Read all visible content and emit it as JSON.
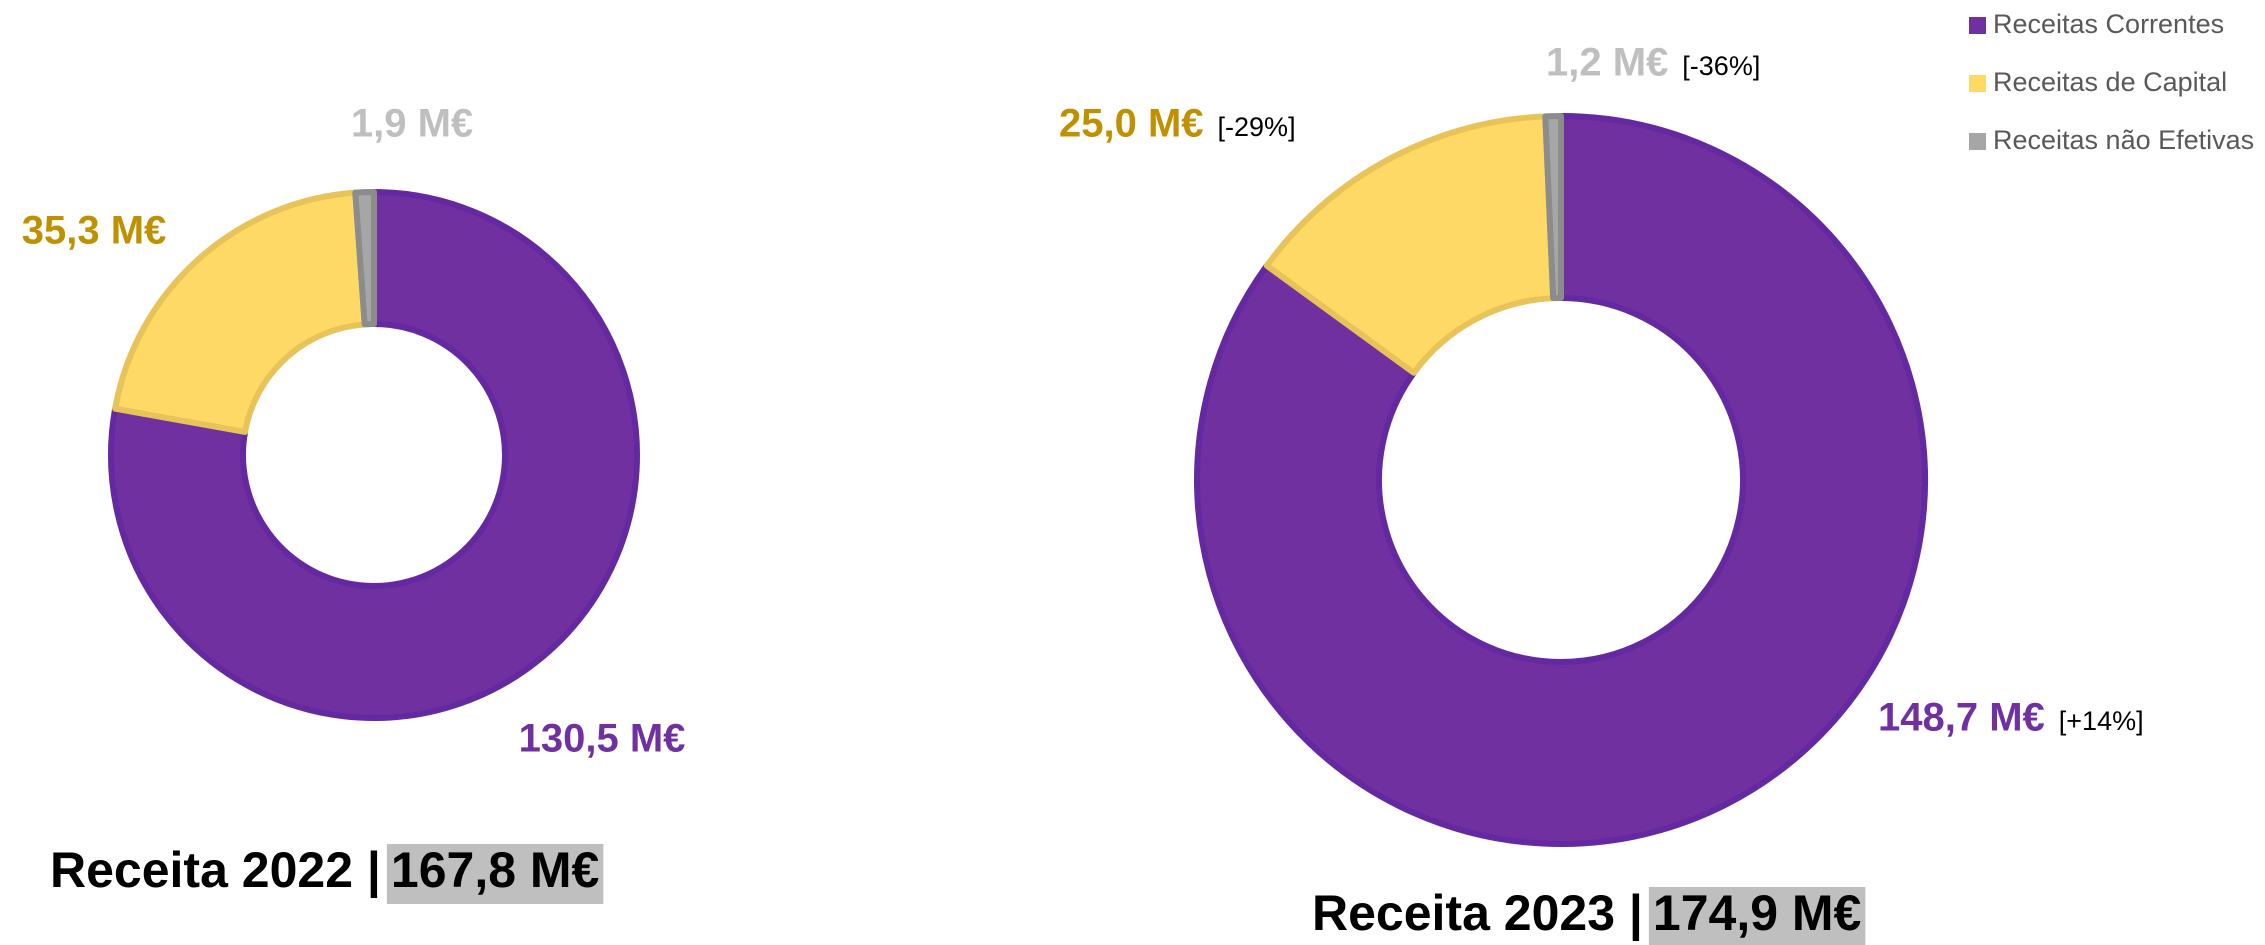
{
  "chart_data": [
    {
      "type": "pie",
      "donut": true,
      "title": "Receita 2022 |",
      "total_label": "167,8 M€",
      "values": [
        130.5,
        35.3,
        1.9
      ],
      "value_labels": [
        "130,5 M€",
        "35,3 M€",
        "1,9 M€"
      ],
      "colors": [
        "#7030a0",
        "#ffd966",
        "#a6a6a6"
      ],
      "label_colors": [
        "#7030a0",
        "#bf9000",
        "#bfbfbf"
      ]
    },
    {
      "type": "pie",
      "donut": true,
      "title": "Receita 2023 |",
      "total_label": "174,9 M€",
      "categories": [
        "Receitas Correntes",
        "Receitas de Capital",
        "Receitas não Efetivas"
      ],
      "values": [
        148.7,
        25.0,
        1.2
      ],
      "value_labels": [
        "148,7 M€",
        "25,0 M€",
        "1,2 M€"
      ],
      "change_labels": [
        "[+14%]",
        "[-29%]",
        "[-36%]"
      ],
      "colors": [
        "#7030a0",
        "#ffd966",
        "#a6a6a6"
      ],
      "label_colors": [
        "#7030a0",
        "#bf9000",
        "#bfbfbf"
      ],
      "legend": "top-right"
    }
  ]
}
